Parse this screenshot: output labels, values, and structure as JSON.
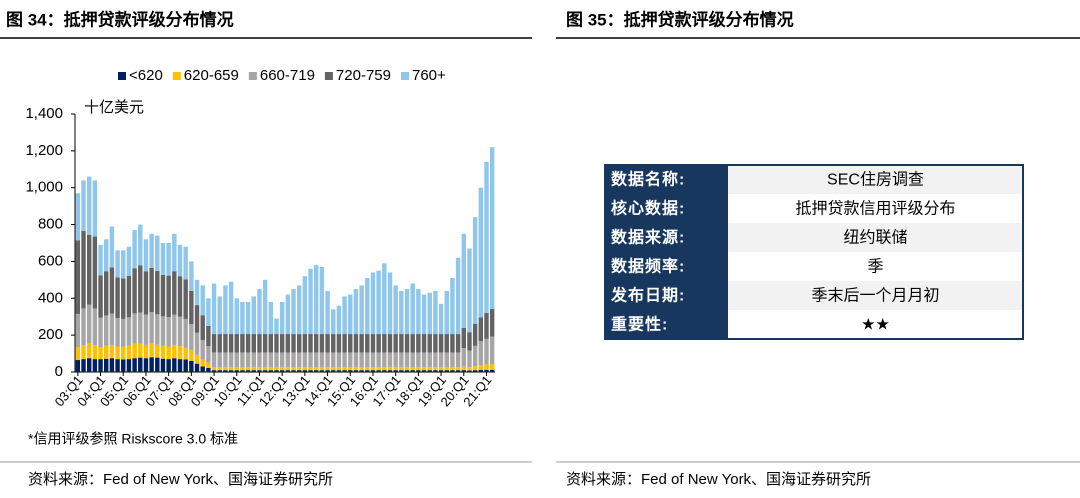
{
  "chart_data": {
    "type": "bar",
    "stacked": true,
    "title": "图 34：抵押贷款评级分布情况",
    "y_unit": "十亿美元",
    "note": "*信用评级参照 Riskscore 3.0 标准",
    "source": "资料来源：Fed of New York、国海证券研究所",
    "categories": [
      "03:Q1",
      null,
      null,
      null,
      "04:Q1",
      null,
      null,
      null,
      "05:Q1",
      null,
      null,
      null,
      "06:Q1",
      null,
      null,
      null,
      "07:Q1",
      null,
      null,
      null,
      "08:Q1",
      null,
      null,
      null,
      "09:Q1",
      null,
      null,
      null,
      "10:Q1",
      null,
      null,
      null,
      "11:Q1",
      null,
      null,
      null,
      "12:Q1",
      null,
      null,
      null,
      "13:Q1",
      null,
      null,
      null,
      "14:Q1",
      null,
      null,
      null,
      "15:Q1",
      null,
      null,
      null,
      "16:Q1",
      null,
      null,
      null,
      "17:Q1",
      null,
      null,
      null,
      "18:Q1",
      null,
      null,
      null,
      "19:Q1",
      null,
      null,
      null,
      "20:Q1",
      null,
      null,
      null,
      "21:Q1",
      null
    ],
    "series": [
      {
        "name": "<620",
        "color": "#002060",
        "values": [
          65,
          70,
          75,
          70,
          70,
          72,
          75,
          70,
          68,
          70,
          75,
          78,
          75,
          80,
          78,
          72,
          70,
          75,
          70,
          68,
          60,
          45,
          30,
          22,
          10,
          10,
          10,
          10,
          10,
          10,
          10,
          10,
          10,
          10,
          10,
          10,
          10,
          10,
          10,
          10,
          10,
          10,
          10,
          10,
          10,
          10,
          10,
          10,
          10,
          10,
          10,
          10,
          10,
          10,
          10,
          10,
          10,
          10,
          10,
          10,
          10,
          10,
          10,
          10,
          10,
          10,
          10,
          10,
          10,
          8,
          10,
          12,
          12,
          12
        ]
      },
      {
        "name": "620-659",
        "color": "#ffc000",
        "values": [
          70,
          75,
          80,
          75,
          65,
          70,
          72,
          68,
          70,
          72,
          78,
          75,
          72,
          75,
          70,
          70,
          68,
          72,
          70,
          65,
          60,
          48,
          38,
          28,
          16,
          16,
          16,
          16,
          16,
          16,
          16,
          16,
          16,
          16,
          16,
          16,
          16,
          16,
          16,
          16,
          16,
          16,
          16,
          16,
          16,
          16,
          16,
          16,
          16,
          16,
          16,
          16,
          16,
          16,
          16,
          16,
          16,
          16,
          16,
          16,
          16,
          16,
          16,
          16,
          16,
          16,
          16,
          16,
          20,
          18,
          22,
          25,
          28,
          30
        ]
      },
      {
        "name": "660-719",
        "color": "#a6a6a6",
        "values": [
          180,
          200,
          210,
          200,
          160,
          165,
          170,
          155,
          150,
          155,
          165,
          170,
          165,
          170,
          165,
          160,
          160,
          165,
          160,
          155,
          140,
          120,
          105,
          90,
          80,
          80,
          80,
          80,
          80,
          80,
          80,
          80,
          80,
          80,
          80,
          80,
          80,
          80,
          80,
          80,
          80,
          80,
          80,
          80,
          80,
          80,
          80,
          80,
          80,
          80,
          80,
          80,
          80,
          80,
          80,
          80,
          80,
          80,
          80,
          80,
          80,
          80,
          80,
          80,
          80,
          80,
          80,
          80,
          100,
          90,
          110,
          130,
          140,
          150
        ]
      },
      {
        "name": "720-759",
        "color": "#636363",
        "values": [
          400,
          420,
          380,
          390,
          230,
          240,
          250,
          220,
          220,
          225,
          245,
          255,
          235,
          240,
          235,
          225,
          225,
          235,
          220,
          215,
          180,
          150,
          135,
          110,
          100,
          100,
          100,
          100,
          100,
          100,
          100,
          100,
          100,
          100,
          100,
          100,
          100,
          100,
          100,
          100,
          100,
          100,
          100,
          100,
          100,
          100,
          100,
          100,
          100,
          100,
          100,
          100,
          100,
          100,
          100,
          100,
          100,
          100,
          100,
          100,
          100,
          100,
          100,
          100,
          100,
          100,
          100,
          100,
          110,
          100,
          120,
          130,
          140,
          150
        ]
      },
      {
        "name": "760+",
        "color": "#8ec6ec",
        "values": [
          255,
          275,
          315,
          305,
          165,
          173,
          223,
          147,
          152,
          158,
          207,
          222,
          173,
          185,
          192,
          173,
          177,
          203,
          170,
          177,
          160,
          137,
          162,
          150,
          274,
          204,
          264,
          284,
          194,
          174,
          174,
          204,
          244,
          294,
          174,
          84,
          174,
          214,
          244,
          264,
          314,
          354,
          374,
          364,
          234,
          134,
          154,
          204,
          214,
          244,
          264,
          304,
          334,
          344,
          384,
          334,
          264,
          234,
          244,
          274,
          244,
          214,
          224,
          234,
          164,
          234,
          304,
          414,
          510,
          454,
          578,
          703,
          820,
          878
        ]
      }
    ],
    "ylim": [
      0,
      1400
    ],
    "yticks": [
      0,
      200,
      400,
      600,
      800,
      {
        "value": 1000,
        "label": "1,000"
      },
      {
        "value": 1200,
        "label": "1,200"
      },
      {
        "value": 1400,
        "label": "1,400"
      }
    ],
    "grid": false,
    "legend": "top"
  },
  "panel_right": {
    "title": "图 35：抵押贷款评级分布情况",
    "table": {
      "rows": [
        [
          "数据名称:",
          "SEC住房调查"
        ],
        [
          "核心数据:",
          "抵押贷款信用评级分布"
        ],
        [
          "数据来源:",
          "纽约联储"
        ],
        [
          "数据频率:",
          "季"
        ],
        [
          "发布日期:",
          "季末后一个月月初"
        ],
        [
          "重要性:",
          "★★"
        ]
      ]
    },
    "source": "资料来源：Fed of New York、国海证券研究所"
  }
}
